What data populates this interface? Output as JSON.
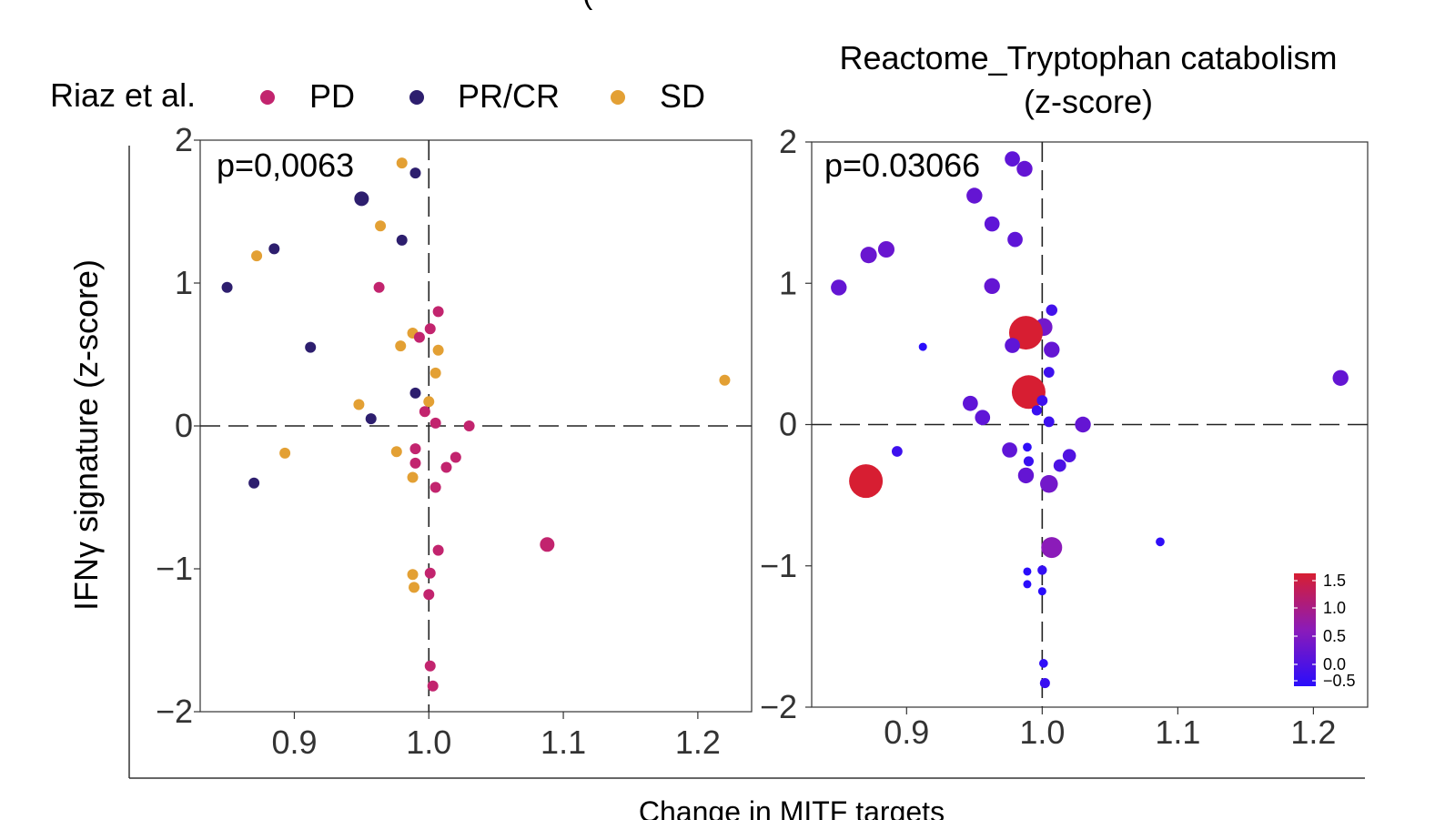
{
  "figure": {
    "top_glyph": "(",
    "ylabel": "IFNγ signature (z-score)",
    "xlabel": "Change in MITF targets"
  },
  "legend": {
    "title": "Riaz et al.",
    "items": [
      {
        "label": "PD",
        "color": "#c2246e"
      },
      {
        "label": "PR/CR",
        "color": "#2d1e6e"
      },
      {
        "label": "SD",
        "color": "#e3a034"
      }
    ]
  },
  "colors": {
    "PD": "#c2246e",
    "PRCR": "#2d1e6e",
    "SD": "#e3a034",
    "axis": "#333333"
  },
  "chart_data": [
    {
      "type": "scatter",
      "title": "",
      "annotation": "p=0,0063",
      "xlim": [
        0.83,
        1.24
      ],
      "ylim": [
        -2,
        2
      ],
      "xticks": [
        0.9,
        1.0,
        1.1,
        1.2
      ],
      "xtick_labels": [
        "0.9",
        "1.0",
        "1.1",
        "1.2"
      ],
      "yticks": [
        -2,
        -1,
        0,
        1,
        2
      ],
      "ytick_labels": [
        "−2",
        "−1",
        "0",
        "1",
        "2"
      ],
      "ref_lines": {
        "x": 1.0,
        "y": 0
      },
      "points": [
        {
          "x": 0.98,
          "y": 1.84,
          "g": "SD"
        },
        {
          "x": 0.99,
          "y": 1.77,
          "g": "PRCR"
        },
        {
          "x": 0.95,
          "y": 1.59,
          "g": "PRCR",
          "big": true
        },
        {
          "x": 0.964,
          "y": 1.4,
          "g": "SD"
        },
        {
          "x": 0.98,
          "y": 1.3,
          "g": "PRCR"
        },
        {
          "x": 0.885,
          "y": 1.24,
          "g": "PRCR"
        },
        {
          "x": 0.872,
          "y": 1.19,
          "g": "SD"
        },
        {
          "x": 0.85,
          "y": 0.97,
          "g": "PRCR"
        },
        {
          "x": 0.963,
          "y": 0.97,
          "g": "PD"
        },
        {
          "x": 1.007,
          "y": 0.8,
          "g": "PD"
        },
        {
          "x": 1.001,
          "y": 0.68,
          "g": "PD"
        },
        {
          "x": 0.988,
          "y": 0.65,
          "g": "SD"
        },
        {
          "x": 0.993,
          "y": 0.62,
          "g": "PD"
        },
        {
          "x": 0.979,
          "y": 0.56,
          "g": "SD"
        },
        {
          "x": 0.912,
          "y": 0.55,
          "g": "PRCR"
        },
        {
          "x": 1.007,
          "y": 0.53,
          "g": "SD"
        },
        {
          "x": 1.005,
          "y": 0.37,
          "g": "SD"
        },
        {
          "x": 1.22,
          "y": 0.32,
          "g": "SD"
        },
        {
          "x": 0.99,
          "y": 0.23,
          "g": "PRCR"
        },
        {
          "x": 1.0,
          "y": 0.17,
          "g": "SD"
        },
        {
          "x": 0.948,
          "y": 0.15,
          "g": "SD"
        },
        {
          "x": 0.997,
          "y": 0.1,
          "g": "PD"
        },
        {
          "x": 0.957,
          "y": 0.05,
          "g": "PRCR"
        },
        {
          "x": 1.005,
          "y": 0.02,
          "g": "PD"
        },
        {
          "x": 1.03,
          "y": 0.0,
          "g": "PD"
        },
        {
          "x": 0.976,
          "y": -0.18,
          "g": "SD"
        },
        {
          "x": 0.99,
          "y": -0.16,
          "g": "PD"
        },
        {
          "x": 0.893,
          "y": -0.19,
          "g": "SD"
        },
        {
          "x": 1.02,
          "y": -0.22,
          "g": "PD"
        },
        {
          "x": 0.99,
          "y": -0.26,
          "g": "PD"
        },
        {
          "x": 1.013,
          "y": -0.29,
          "g": "PD"
        },
        {
          "x": 0.988,
          "y": -0.36,
          "g": "SD"
        },
        {
          "x": 0.87,
          "y": -0.4,
          "g": "PRCR"
        },
        {
          "x": 1.005,
          "y": -0.43,
          "g": "PD"
        },
        {
          "x": 1.088,
          "y": -0.83,
          "g": "PD",
          "big": true
        },
        {
          "x": 1.007,
          "y": -0.87,
          "g": "PD"
        },
        {
          "x": 0.988,
          "y": -1.04,
          "g": "SD"
        },
        {
          "x": 1.001,
          "y": -1.03,
          "g": "PD"
        },
        {
          "x": 0.989,
          "y": -1.13,
          "g": "SD"
        },
        {
          "x": 1.0,
          "y": -1.18,
          "g": "PD"
        },
        {
          "x": 1.001,
          "y": -1.68,
          "g": "PD"
        },
        {
          "x": 1.003,
          "y": -1.82,
          "g": "PD"
        }
      ]
    },
    {
      "type": "scatter",
      "title": "Reactome_Tryptophan catabolism",
      "subtitle": "(z-score)",
      "annotation": "p=0.03066",
      "xlim": [
        0.83,
        1.24
      ],
      "ylim": [
        -2,
        2
      ],
      "xticks": [
        0.9,
        1.0,
        1.1,
        1.2
      ],
      "xtick_labels": [
        "0.9",
        "1.0",
        "1.1",
        "1.2"
      ],
      "yticks": [
        -2,
        -1,
        0,
        1,
        2
      ],
      "ytick_labels": [
        "−2",
        "−1",
        "0",
        "1",
        "2"
      ],
      "ref_lines": {
        "x": 1.0,
        "y": 0
      },
      "colorbar": {
        "label_values": [
          1.5,
          1.0,
          0.5,
          0.0,
          -0.5
        ],
        "labels": [
          "1.5",
          "1.0",
          "0.5",
          "0.0",
          "−0.5"
        ],
        "range": [
          -0.5,
          1.5
        ],
        "stops": [
          "#2a0dfb",
          "#8b1bb9",
          "#d71e32"
        ]
      },
      "points": [
        {
          "x": 0.978,
          "y": 1.88,
          "z": 0.05
        },
        {
          "x": 0.987,
          "y": 1.81,
          "z": 0.1
        },
        {
          "x": 0.95,
          "y": 1.62,
          "z": 0.1
        },
        {
          "x": 0.963,
          "y": 1.42,
          "z": 0.05
        },
        {
          "x": 0.98,
          "y": 1.31,
          "z": 0.05
        },
        {
          "x": 0.885,
          "y": 1.24,
          "z": 0.15
        },
        {
          "x": 0.872,
          "y": 1.2,
          "z": 0.15
        },
        {
          "x": 0.85,
          "y": 0.97,
          "z": 0.1
        },
        {
          "x": 0.963,
          "y": 0.98,
          "z": 0.1
        },
        {
          "x": 1.007,
          "y": 0.81,
          "z": -0.25
        },
        {
          "x": 1.001,
          "y": 0.69,
          "z": 0.25
        },
        {
          "x": 0.988,
          "y": 0.65,
          "z": 1.6
        },
        {
          "x": 0.978,
          "y": 0.56,
          "z": 0.05
        },
        {
          "x": 0.912,
          "y": 0.55,
          "z": -0.5
        },
        {
          "x": 1.007,
          "y": 0.53,
          "z": 0.1
        },
        {
          "x": 1.005,
          "y": 0.37,
          "z": -0.3
        },
        {
          "x": 1.22,
          "y": 0.33,
          "z": 0.1
        },
        {
          "x": 0.99,
          "y": 0.23,
          "z": 1.6
        },
        {
          "x": 1.0,
          "y": 0.17,
          "z": -0.3
        },
        {
          "x": 0.947,
          "y": 0.15,
          "z": 0.05
        },
        {
          "x": 0.996,
          "y": 0.1,
          "z": -0.35
        },
        {
          "x": 0.956,
          "y": 0.05,
          "z": 0.05
        },
        {
          "x": 1.005,
          "y": 0.02,
          "z": -0.3
        },
        {
          "x": 1.03,
          "y": 0.0,
          "z": 0.1
        },
        {
          "x": 0.976,
          "y": -0.18,
          "z": 0.05
        },
        {
          "x": 0.989,
          "y": -0.16,
          "z": -0.45
        },
        {
          "x": 0.893,
          "y": -0.19,
          "z": -0.3
        },
        {
          "x": 1.02,
          "y": -0.22,
          "z": -0.1
        },
        {
          "x": 0.99,
          "y": -0.26,
          "z": -0.35
        },
        {
          "x": 1.013,
          "y": -0.29,
          "z": -0.15
        },
        {
          "x": 0.988,
          "y": -0.36,
          "z": 0.1
        },
        {
          "x": 0.87,
          "y": -0.4,
          "z": 1.6
        },
        {
          "x": 1.005,
          "y": -0.42,
          "z": 0.25
        },
        {
          "x": 1.087,
          "y": -0.83,
          "z": -0.45
        },
        {
          "x": 1.007,
          "y": -0.87,
          "z": 0.5
        },
        {
          "x": 0.989,
          "y": -1.04,
          "z": -0.5
        },
        {
          "x": 1.0,
          "y": -1.03,
          "z": -0.4
        },
        {
          "x": 0.989,
          "y": -1.13,
          "z": -0.5
        },
        {
          "x": 1.0,
          "y": -1.18,
          "z": -0.5
        },
        {
          "x": 1.001,
          "y": -1.69,
          "z": -0.45
        },
        {
          "x": 1.002,
          "y": -1.83,
          "z": -0.35
        }
      ]
    }
  ]
}
